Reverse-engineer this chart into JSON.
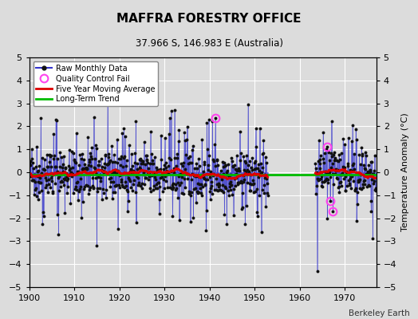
{
  "title": "MAFFRA FORESTRY OFFICE",
  "subtitle": "37.966 S, 146.983 E (Australia)",
  "right_ylabel": "Temperature Anomaly (°C)",
  "credit": "Berkeley Earth",
  "xlim": [
    1900,
    1977
  ],
  "ylim": [
    -5,
    5
  ],
  "xticks": [
    1900,
    1910,
    1920,
    1930,
    1940,
    1950,
    1960,
    1970
  ],
  "yticks": [
    -5,
    -4,
    -3,
    -2,
    -1,
    0,
    1,
    2,
    3,
    4,
    5
  ],
  "trend_value": -0.1,
  "bg_color": "#dcdcdc",
  "data_color": "#3333cc",
  "dot_color": "#111111",
  "ma_color": "#dd0000",
  "trend_color": "#00bb00",
  "qc_color": "#ff44ee",
  "segment1_start": 1900.0,
  "segment1_end": 1953.0,
  "segment2_start": 1963.5,
  "segment2_end": 1977.0,
  "random_seed": 42
}
